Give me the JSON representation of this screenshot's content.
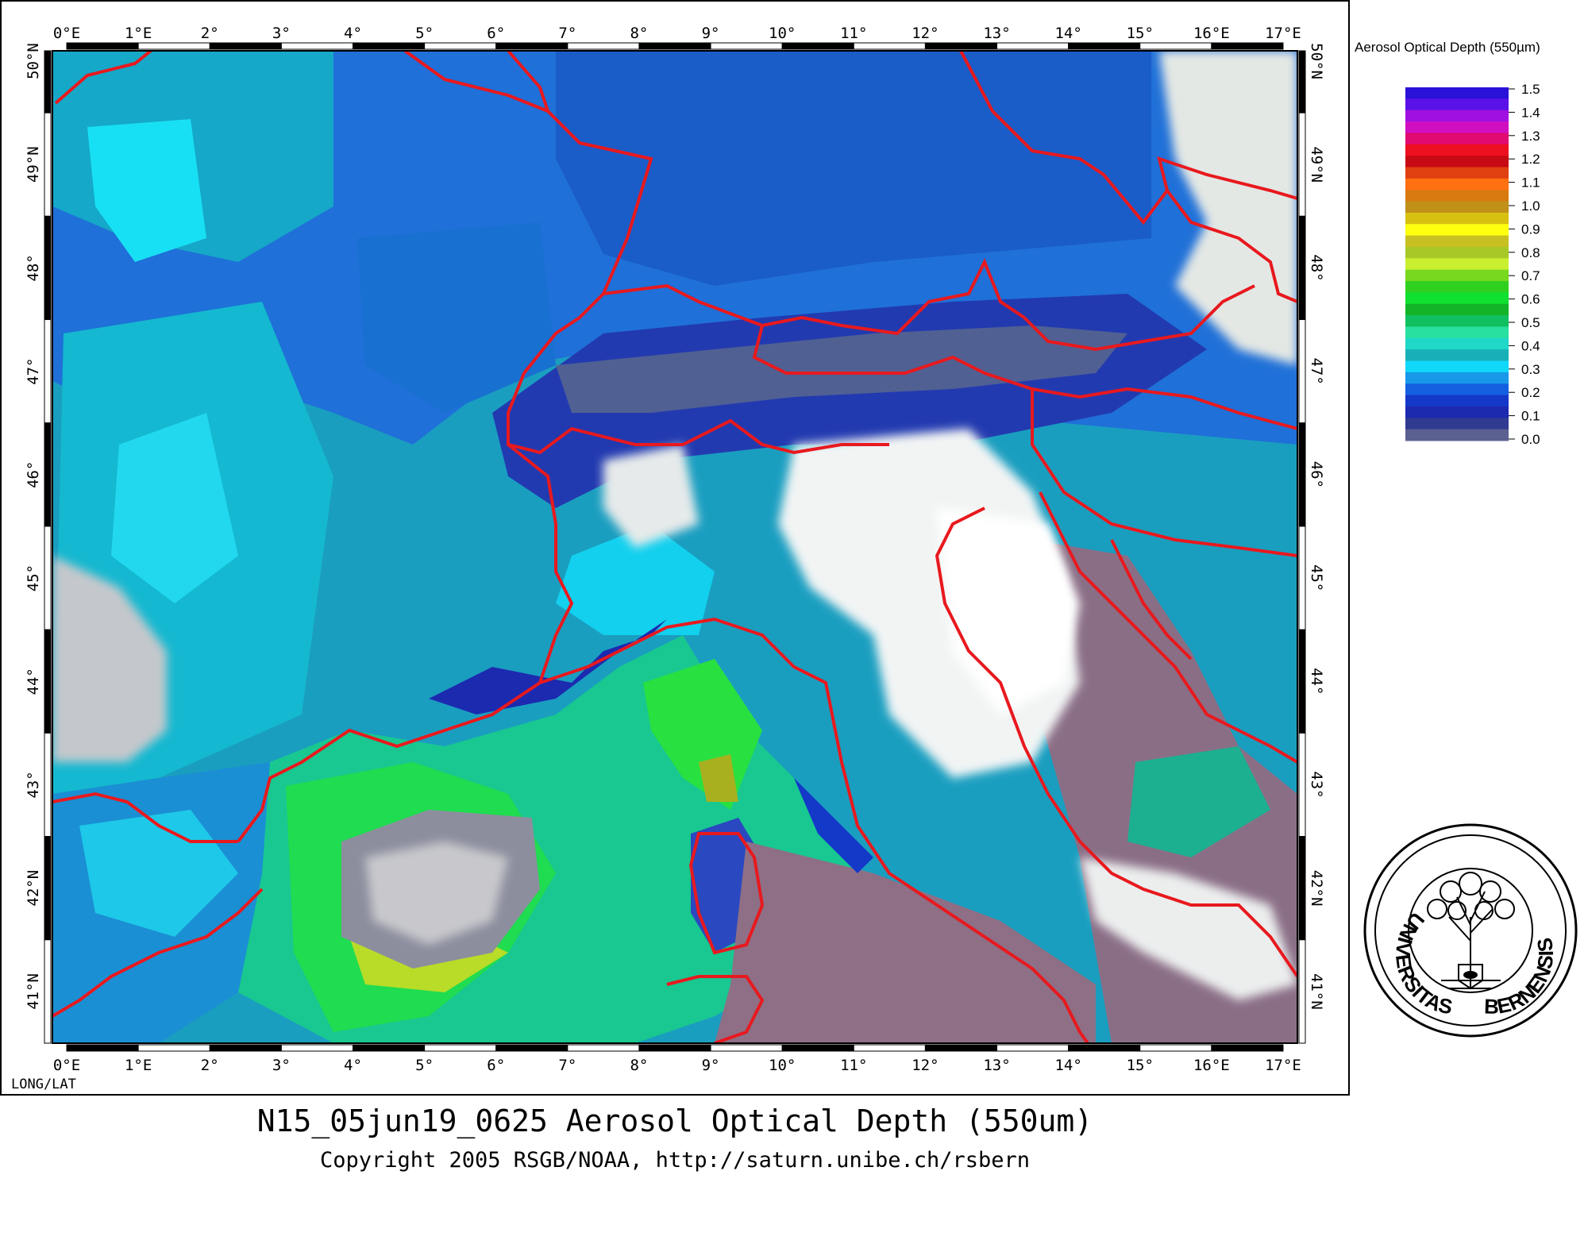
{
  "map": {
    "lon_labels": [
      "0°E",
      "1°E",
      "2°",
      "3°",
      "4°",
      "5°",
      "6°",
      "7°",
      "8°",
      "9°",
      "10°",
      "11°",
      "12°",
      "13°",
      "14°",
      "15°",
      "16°E",
      "17°E"
    ],
    "lat_labels": [
      "50°N",
      "49°N",
      "48°",
      "47°",
      "46°",
      "45°",
      "44°",
      "43°",
      "42°N",
      "41°N"
    ],
    "corner_label": "LONG/LAT",
    "lon_range": [
      -0.2,
      17.2
    ],
    "lat_range": [
      40.5,
      50.1
    ],
    "border_color": "#e8191e",
    "background_colors": {
      "deep_blue": "#1e3fd0",
      "blue": "#1f6fe0",
      "teal": "#1aa0b8",
      "cyan": "#10d8f0",
      "sea_green": "#24b49a",
      "green": "#28e040",
      "yellow_green": "#b8dc28",
      "cloud": "#e9ecec",
      "mauve": "#8e6f86"
    }
  },
  "legend": {
    "title": "Aerosol Optical Depth (550µm)",
    "values": [
      "1.5",
      "1.4",
      "1.3",
      "1.2",
      "1.1",
      "1.0",
      "0.9",
      "0.8",
      "0.7",
      "0.6",
      "0.5",
      "0.4",
      "0.3",
      "0.2",
      "0.1",
      "0.0"
    ],
    "colors": [
      "#2a12d8",
      "#5b12e8",
      "#a010e0",
      "#d010c0",
      "#e00a70",
      "#ee1020",
      "#c80a14",
      "#e04010",
      "#ff7010",
      "#d87a10",
      "#c09018",
      "#d8c010",
      "#ffff10",
      "#c8c020",
      "#a8c828",
      "#c8f030",
      "#78d820",
      "#30d020",
      "#10e030",
      "#14b428",
      "#10c060",
      "#28e0a0",
      "#20d8c8",
      "#18b0b8",
      "#10d8f8",
      "#1898e8",
      "#1460e0",
      "#1438c8",
      "#1c2ab0",
      "#303a90",
      "#5a6090"
    ]
  },
  "caption": {
    "title": "N15_05jun19_0625 Aerosol Optical Depth (550um)",
    "copyright": "Copyright 2005 RSGB/NOAA, http://saturn.unibe.ch/rsbern"
  },
  "seal": {
    "text_left": "UNIVERSITAS",
    "text_right": "BERNENSIS"
  }
}
